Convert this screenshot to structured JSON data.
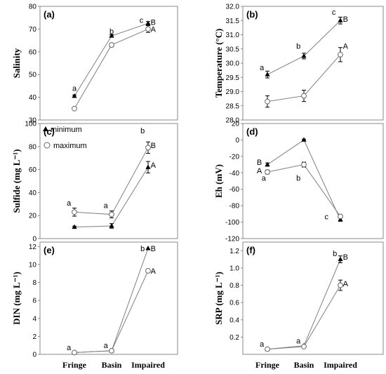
{
  "figure": {
    "categories": [
      "Fringe",
      "Basin",
      "Impaired"
    ],
    "legend": [
      {
        "label": "minimum",
        "marker": "filled-triangle"
      },
      {
        "label": "maximum",
        "marker": "open-circle"
      }
    ]
  },
  "chart_data": [
    {
      "panel": "(a)",
      "type": "line",
      "ylabel": "Salinity",
      "categories": [
        "Fringe",
        "Basin",
        "Impaired"
      ],
      "yticks": [
        30,
        40,
        50,
        60,
        70,
        80
      ],
      "ylim": [
        30,
        80
      ],
      "series": [
        {
          "name": "minimum",
          "values": [
            40.5,
            67,
            72.5
          ],
          "err": [
            0.5,
            0.5,
            0.8
          ]
        },
        {
          "name": "maximum",
          "values": [
            35,
            63,
            70
          ],
          "err": [
            0.5,
            0.8,
            1.5
          ]
        }
      ],
      "annotations": [
        {
          "text": "a",
          "x": 0,
          "y": 44
        },
        {
          "text": "b",
          "x": 1,
          "y": 69
        },
        {
          "text": "c",
          "x": 1.82,
          "y": 74
        },
        {
          "text": "B",
          "x": 2.14,
          "y": 73
        },
        {
          "text": "A",
          "x": 2.14,
          "y": 70
        }
      ]
    },
    {
      "panel": "(b)",
      "type": "line",
      "ylabel": "Temperature (°C)",
      "categories": [
        "Fringe",
        "Basin",
        "Impaired"
      ],
      "yticks": [
        28.0,
        28.5,
        29.0,
        29.5,
        30.0,
        30.5,
        31.0,
        31.5,
        32.0
      ],
      "ylim": [
        28.0,
        32.0
      ],
      "series": [
        {
          "name": "minimum",
          "values": [
            29.6,
            30.25,
            31.5
          ],
          "err": [
            0.12,
            0.1,
            0.12
          ]
        },
        {
          "name": "maximum",
          "values": [
            28.65,
            28.85,
            30.3
          ],
          "err": [
            0.2,
            0.2,
            0.25
          ]
        }
      ],
      "annotations": [
        {
          "text": "a",
          "x": -0.15,
          "y": 29.85
        },
        {
          "text": "b",
          "x": 0.85,
          "y": 30.6
        },
        {
          "text": "c",
          "x": 1.82,
          "y": 31.8
        },
        {
          "text": "B",
          "x": 2.14,
          "y": 31.55
        },
        {
          "text": "A",
          "x": 2.14,
          "y": 30.6
        }
      ]
    },
    {
      "panel": "(c)",
      "type": "line",
      "ylabel": "Sulfide (mg L⁻¹)",
      "categories": [
        "Fringe",
        "Basin",
        "Impaired"
      ],
      "yticks": [
        0,
        20,
        40,
        60,
        80,
        100
      ],
      "ylim": [
        0,
        100
      ],
      "series": [
        {
          "name": "minimum",
          "values": [
            10,
            11,
            62
          ],
          "err": [
            0.8,
            2,
            5
          ]
        },
        {
          "name": "maximum",
          "values": [
            23,
            21,
            79
          ],
          "err": [
            3.5,
            3,
            5
          ]
        }
      ],
      "annotations": [
        {
          "text": "a",
          "x": -0.15,
          "y": 31
        },
        {
          "text": "a",
          "x": 0.85,
          "y": 29
        },
        {
          "text": "b",
          "x": 1.85,
          "y": 94
        },
        {
          "text": "B",
          "x": 2.14,
          "y": 81
        },
        {
          "text": "A",
          "x": 2.14,
          "y": 64
        }
      ]
    },
    {
      "panel": "(d)",
      "type": "line",
      "ylabel": "Eh (mV)",
      "categories": [
        "Fringe",
        "Basin",
        "Impaired"
      ],
      "yticks": [
        -120,
        -100,
        -80,
        -60,
        -40,
        -20,
        0,
        20
      ],
      "ylim": [
        -120,
        20
      ],
      "series": [
        {
          "name": "minimum",
          "values": [
            -30,
            0,
            -97
          ],
          "err": [
            2,
            1,
            2
          ]
        },
        {
          "name": "maximum",
          "values": [
            -39,
            -30,
            -93
          ],
          "err": [
            2.5,
            3,
            2
          ]
        }
      ],
      "annotations": [
        {
          "text": "B",
          "x": -0.22,
          "y": -27
        },
        {
          "text": "A",
          "x": -0.22,
          "y": -37
        },
        {
          "text": "a",
          "x": -0.1,
          "y": -46
        },
        {
          "text": "b",
          "x": 0.85,
          "y": -46
        },
        {
          "text": "c",
          "x": 1.62,
          "y": -93
        }
      ]
    },
    {
      "panel": "(e)",
      "type": "line",
      "ylabel": "DIN (mg L⁻¹)",
      "categories": [
        "Fringe",
        "Basin",
        "Impaired"
      ],
      "yticks": [
        0,
        2,
        4,
        6,
        8,
        10,
        12
      ],
      "ylim": [
        0,
        12.5
      ],
      "series": [
        {
          "name": "minimum",
          "values": [
            0.2,
            0.4,
            11.8
          ],
          "err": [
            0,
            0,
            0
          ]
        },
        {
          "name": "maximum",
          "values": [
            0.2,
            0.4,
            9.3
          ],
          "err": [
            0,
            0,
            0
          ]
        }
      ],
      "annotations": [
        {
          "text": "a",
          "x": -0.15,
          "y": 0.8
        },
        {
          "text": "a",
          "x": 0.85,
          "y": 1.0
        },
        {
          "text": "b",
          "x": 1.85,
          "y": 11.8
        },
        {
          "text": "B",
          "x": 2.14,
          "y": 11.8
        },
        {
          "text": "A",
          "x": 2.14,
          "y": 9.3
        }
      ]
    },
    {
      "panel": "(f)",
      "type": "line",
      "ylabel": "SRP (mg L⁻¹)",
      "categories": [
        "Fringe",
        "Basin",
        "Impaired"
      ],
      "yticks": [
        0.2,
        0.4,
        0.6,
        0.8,
        1.0,
        1.2
      ],
      "ylim": [
        0.0,
        1.3
      ],
      "series": [
        {
          "name": "minimum",
          "values": [
            0.06,
            0.1,
            1.1
          ],
          "err": [
            0.005,
            0.005,
            0.04
          ]
        },
        {
          "name": "maximum",
          "values": [
            0.06,
            0.09,
            0.8
          ],
          "err": [
            0.005,
            0.005,
            0.06
          ]
        }
      ],
      "annotations": [
        {
          "text": "a",
          "x": -0.15,
          "y": 0.12
        },
        {
          "text": "a",
          "x": 0.85,
          "y": 0.16
        },
        {
          "text": "b",
          "x": 1.85,
          "y": 1.17
        },
        {
          "text": "B",
          "x": 2.14,
          "y": 1.13
        },
        {
          "text": "A",
          "x": 2.14,
          "y": 0.82
        }
      ]
    }
  ]
}
